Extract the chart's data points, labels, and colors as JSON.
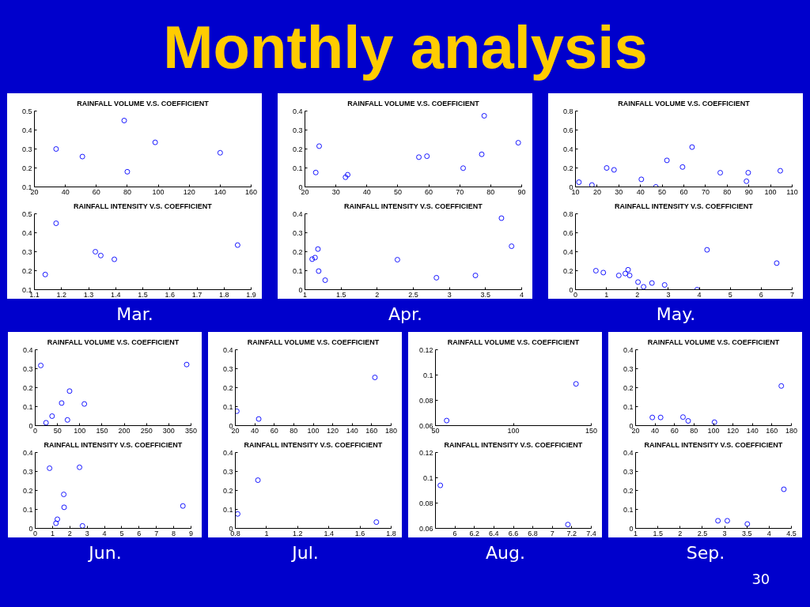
{
  "chart_data": [
    {
      "type": "other",
      "title": "Monthly analysis",
      "annotations": [
        "30"
      ]
    },
    {
      "type": "scatter",
      "title": "RAINFALL VOLUME V.S. COEFFICIENT",
      "x": [
        34,
        51,
        78,
        80,
        98,
        140
      ],
      "values": [
        0.3,
        0.26,
        0.45,
        0.18,
        0.335,
        0.28
      ],
      "color": "#0000ff",
      "marker": "circle",
      "xlim": [
        20,
        160
      ],
      "xticks": [
        20,
        40,
        60,
        80,
        100,
        120,
        140,
        160
      ],
      "ylim": [
        0.1,
        0.5
      ],
      "yticks": [
        0.1,
        0.2,
        0.3,
        0.4,
        0.5
      ]
    },
    {
      "type": "scatter",
      "title": "RAINFALL INTENSITY V.S. COEFFICIENT",
      "x": [
        1.14,
        1.18,
        1.325,
        1.345,
        1.395,
        1.85
      ],
      "values": [
        0.18,
        0.45,
        0.3,
        0.28,
        0.26,
        0.335
      ],
      "color": "#0000ff",
      "marker": "circle",
      "xlim": [
        1.1,
        1.9
      ],
      "xticks": [
        1.1,
        1.2,
        1.3,
        1.4,
        1.5,
        1.6,
        1.7,
        1.8,
        1.9
      ],
      "ylim": [
        0.1,
        0.5
      ],
      "yticks": [
        0.1,
        0.2,
        0.3,
        0.4,
        0.5
      ],
      "annotations": [
        "Mar."
      ]
    },
    {
      "type": "scatter",
      "title": "RAINFALL VOLUME V.S. COEFFICIENT",
      "x": [
        23.5,
        24.6,
        33.1,
        33.8,
        56.8,
        59.4,
        71.1,
        77.1,
        77.9,
        88.9
      ],
      "values": [
        0.076,
        0.215,
        0.051,
        0.064,
        0.157,
        0.162,
        0.099,
        0.172,
        0.375,
        0.233
      ],
      "color": "#0000ff",
      "marker": "circle",
      "xlim": [
        20,
        90
      ],
      "xticks": [
        20,
        30,
        40,
        50,
        60,
        70,
        80,
        90
      ],
      "ylim": [
        0,
        0.4
      ],
      "yticks": [
        0,
        0.1,
        0.2,
        0.3,
        0.4
      ]
    },
    {
      "type": "scatter",
      "title": "RAINFALL INTENSITY V.S. COEFFICIENT",
      "x": [
        1.1,
        1.14,
        1.18,
        1.19,
        1.28,
        2.28,
        2.82,
        3.36,
        3.72,
        3.86
      ],
      "values": [
        0.161,
        0.169,
        0.214,
        0.098,
        0.05,
        0.158,
        0.063,
        0.075,
        0.377,
        0.229
      ],
      "color": "#0000ff",
      "marker": "circle",
      "xlim": [
        1,
        4
      ],
      "xticks": [
        1,
        1.5,
        2,
        2.5,
        3,
        3.5,
        4
      ],
      "ylim": [
        0,
        0.4
      ],
      "yticks": [
        0,
        0.1,
        0.2,
        0.3,
        0.4
      ],
      "annotations": [
        "Apr."
      ]
    },
    {
      "type": "scatter",
      "title": "RAINFALL VOLUME V.S. COEFFICIENT",
      "x": [
        11.6,
        17.6,
        24.4,
        27.8,
        40.4,
        47.1,
        52.2,
        59.4,
        63.8,
        76.8,
        88.9,
        89.7,
        104.5
      ],
      "values": [
        0.05,
        0.02,
        0.2,
        0.18,
        0.08,
        0,
        0.28,
        0.21,
        0.42,
        0.15,
        0.06,
        0.15,
        0.17
      ],
      "color": "#0000ff",
      "marker": "circle",
      "xlim": [
        10,
        110
      ],
      "xticks": [
        10,
        20,
        30,
        40,
        50,
        60,
        70,
        80,
        90,
        100,
        110
      ],
      "ylim": [
        0,
        0.8
      ],
      "yticks": [
        0,
        0.2,
        0.4,
        0.6,
        0.8
      ]
    },
    {
      "type": "scatter",
      "title": "RAINFALL INTENSITY V.S. COEFFICIENT",
      "x": [
        0.66,
        0.9,
        1.4,
        1.61,
        1.7,
        1.75,
        2.02,
        2.2,
        2.47,
        2.88,
        3.93,
        4.25,
        6.5
      ],
      "values": [
        0.2,
        0.18,
        0.15,
        0.17,
        0.21,
        0.15,
        0.08,
        0.03,
        0.07,
        0.05,
        0,
        0.42,
        0.28
      ],
      "color": "#0000ff",
      "marker": "circle",
      "xlim": [
        0,
        7
      ],
      "xticks": [
        0,
        1,
        2,
        3,
        4,
        5,
        6,
        7
      ],
      "ylim": [
        0,
        0.8
      ],
      "yticks": [
        0,
        0.2,
        0.4,
        0.6,
        0.8
      ],
      "annotations": [
        "May."
      ]
    },
    {
      "type": "scatter",
      "title": "RAINFALL VOLUME V.S. COEFFICIENT",
      "x": [
        12.6,
        24.3,
        37.9,
        59.4,
        72.5,
        77.2,
        110.4,
        340.2
      ],
      "values": [
        0.317,
        0.015,
        0.05,
        0.119,
        0.03,
        0.182,
        0.114,
        0.322
      ],
      "color": "#0000ff",
      "marker": "circle",
      "xlim": [
        0,
        350
      ],
      "xticks": [
        0,
        50,
        100,
        150,
        200,
        250,
        300,
        350
      ],
      "ylim": [
        0,
        0.4
      ],
      "yticks": [
        0,
        0.1,
        0.2,
        0.3,
        0.4
      ]
    },
    {
      "type": "scatter",
      "title": "RAINFALL INTENSITY V.S. COEFFICIENT",
      "x": [
        0.83,
        1.2,
        1.28,
        1.65,
        1.67,
        2.56,
        2.73,
        8.53
      ],
      "values": [
        0.317,
        0.027,
        0.048,
        0.179,
        0.111,
        0.322,
        0.013,
        0.118
      ],
      "color": "#0000ff",
      "marker": "circle",
      "xlim": [
        0,
        9
      ],
      "xticks": [
        0,
        1,
        2,
        3,
        4,
        5,
        6,
        7,
        8,
        9
      ],
      "ylim": [
        0,
        0.4
      ],
      "yticks": [
        0,
        0.1,
        0.2,
        0.3,
        0.4
      ],
      "annotations": [
        "Jun."
      ]
    },
    {
      "type": "scatter",
      "title": "RAINFALL VOLUME V.S. COEFFICIENT",
      "x": [
        21.5,
        44,
        163.3
      ],
      "values": [
        0.076,
        0.035,
        0.254
      ],
      "color": "#0000ff",
      "marker": "circle",
      "xlim": [
        20,
        180
      ],
      "xticks": [
        20,
        40,
        60,
        80,
        100,
        120,
        140,
        160,
        180
      ],
      "ylim": [
        0,
        0.4
      ],
      "yticks": [
        0,
        0.1,
        0.2,
        0.3,
        0.4
      ]
    },
    {
      "type": "scatter",
      "title": "RAINFALL INTENSITY V.S. COEFFICIENT",
      "x": [
        0.815,
        0.945,
        1.705
      ],
      "values": [
        0.076,
        0.254,
        0.033
      ],
      "color": "#0000ff",
      "marker": "circle",
      "xlim": [
        0.8,
        1.8
      ],
      "xticks": [
        0.8,
        1,
        1.2,
        1.4,
        1.6,
        1.8
      ],
      "ylim": [
        0,
        0.4
      ],
      "yticks": [
        0,
        0.1,
        0.2,
        0.3,
        0.4
      ],
      "annotations": [
        "Jul."
      ]
    },
    {
      "type": "scatter",
      "title": "RAINFALL VOLUME V.S. COEFFICIENT",
      "x": [
        57.2,
        140.2
      ],
      "values": [
        0.064,
        0.093
      ],
      "color": "#0000ff",
      "marker": "circle",
      "xlim": [
        50,
        150
      ],
      "xticks": [
        50,
        100,
        150
      ],
      "ylim": [
        0.06,
        0.12
      ],
      "yticks": [
        0.06,
        0.08,
        0.1,
        0.12
      ]
    },
    {
      "type": "scatter",
      "title": "RAINFALL INTENSITY V.S. COEFFICIENT",
      "x": [
        5.85,
        7.16
      ],
      "values": [
        0.094,
        0.063
      ],
      "color": "#0000ff",
      "marker": "circle",
      "xlim": [
        5.8,
        7.4
      ],
      "xticks": [
        6,
        6.2,
        6.4,
        6.6,
        6.8,
        7,
        7.2,
        7.4
      ],
      "ylim": [
        0.06,
        0.12
      ],
      "yticks": [
        0.06,
        0.08,
        0.1,
        0.12
      ],
      "annotations": [
        "Aug."
      ]
    },
    {
      "type": "scatter",
      "title": "RAINFALL VOLUME V.S. COEFFICIENT",
      "x": [
        37.2,
        45.7,
        68.7,
        74,
        101,
        169.6
      ],
      "values": [
        0.043,
        0.043,
        0.045,
        0.025,
        0.018,
        0.209
      ],
      "color": "#0000ff",
      "marker": "circle",
      "xlim": [
        20,
        180
      ],
      "xticks": [
        20,
        40,
        60,
        80,
        100,
        120,
        140,
        160,
        180
      ],
      "ylim": [
        0,
        0.4
      ],
      "yticks": [
        0,
        0.1,
        0.2,
        0.3,
        0.4
      ]
    },
    {
      "type": "scatter",
      "title": "RAINFALL INTENSITY V.S. COEFFICIENT",
      "x": [
        2.85,
        3.06,
        3.51,
        4.33
      ],
      "values": [
        0.04,
        0.04,
        0.023,
        0.206
      ],
      "color": "#0000ff",
      "marker": "circle",
      "xlim": [
        1,
        4.5
      ],
      "xticks": [
        1,
        1.5,
        2,
        2.5,
        3,
        3.5,
        4,
        4.5
      ],
      "ylim": [
        0,
        0.4
      ],
      "yticks": [
        0,
        0.1,
        0.2,
        0.3,
        0.4
      ],
      "annotations": [
        "Sep."
      ]
    }
  ]
}
